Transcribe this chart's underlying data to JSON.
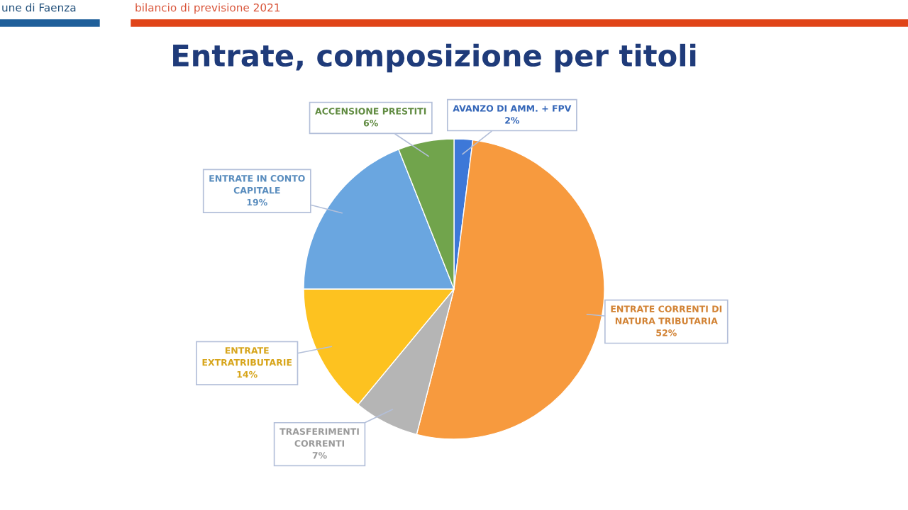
{
  "chart_data": {
    "type": "pie",
    "title": "Entrate, composizione per titoli",
    "annotations": [
      "une di Faenza",
      "bilancio di previsione 2021"
    ],
    "categories": [
      "AVANZO DI AMM. + FPV",
      "ENTRATE CORRENTI DI\nNATURA TRIBUTARIA",
      "TRASFERIMENTI\nCORRENTI",
      "ENTRATE\nEXTRATRIBUTARIE",
      "ENTRATE IN CONTO\nCAPITALE",
      "ACCENSIONE PRESTITI"
    ],
    "values": [
      2,
      52,
      7,
      14,
      19,
      6
    ],
    "value_labels": [
      "2%",
      "52%",
      "7%",
      "14%",
      "19%",
      "6%"
    ],
    "colors": [
      "#3d78d8",
      "#f79a3e",
      "#b5b5b5",
      "#fdc220",
      "#6aa6e0",
      "#71a44c"
    ]
  }
}
